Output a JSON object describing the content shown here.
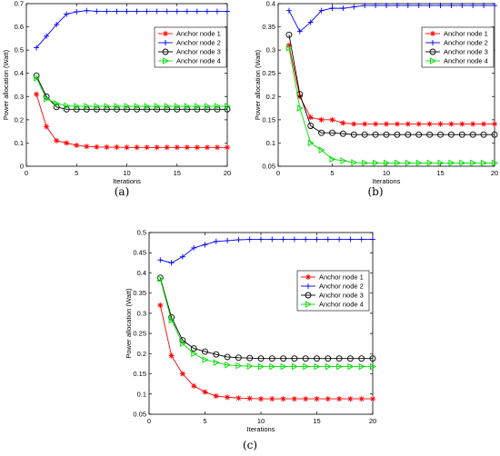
{
  "figure": {
    "captions": [
      "(a)",
      "(b)",
      "(c)"
    ]
  },
  "series_styles": [
    {
      "color": "#ff0000",
      "marker": "star"
    },
    {
      "color": "#0000ff",
      "marker": "plus"
    },
    {
      "color": "#000000",
      "marker": "circle"
    },
    {
      "color": "#00dd00",
      "marker": "triangle"
    }
  ],
  "chart_data": [
    {
      "type": "line",
      "panel": "(a)",
      "xlabel": "Iterations",
      "ylabel": "Power allocation (Watt)",
      "xlim": [
        0,
        20
      ],
      "ylim": [
        0,
        0.7
      ],
      "xticks": [
        0,
        5,
        10,
        15,
        20
      ],
      "yticks": [
        0,
        0.1,
        0.2,
        0.3,
        0.4,
        0.5,
        0.6,
        0.7
      ],
      "legend_position": "top-right",
      "x": [
        1,
        2,
        3,
        4,
        5,
        6,
        7,
        8,
        9,
        10,
        11,
        12,
        13,
        14,
        15,
        16,
        17,
        18,
        19,
        20
      ],
      "series": [
        {
          "name": "Anchor node 1",
          "values": [
            0.31,
            0.17,
            0.11,
            0.1,
            0.09,
            0.085,
            0.083,
            0.082,
            0.082,
            0.081,
            0.081,
            0.081,
            0.081,
            0.081,
            0.081,
            0.081,
            0.081,
            0.081,
            0.081,
            0.081
          ]
        },
        {
          "name": "Anchor node 2",
          "values": [
            0.51,
            0.56,
            0.61,
            0.655,
            0.665,
            0.67,
            0.667,
            0.667,
            0.667,
            0.667,
            0.667,
            0.667,
            0.667,
            0.667,
            0.667,
            0.667,
            0.667,
            0.667,
            0.667,
            0.667
          ]
        },
        {
          "name": "Anchor node 3",
          "values": [
            0.39,
            0.3,
            0.255,
            0.245,
            0.245,
            0.245,
            0.245,
            0.245,
            0.245,
            0.245,
            0.245,
            0.245,
            0.245,
            0.245,
            0.245,
            0.245,
            0.245,
            0.245,
            0.245,
            0.245
          ]
        },
        {
          "name": "Anchor node 4",
          "values": [
            0.38,
            0.29,
            0.27,
            0.26,
            0.258,
            0.258,
            0.258,
            0.258,
            0.258,
            0.258,
            0.258,
            0.258,
            0.258,
            0.258,
            0.258,
            0.258,
            0.258,
            0.258,
            0.258,
            0.258
          ]
        }
      ]
    },
    {
      "type": "line",
      "panel": "(b)",
      "xlabel": "Iterations",
      "ylabel": "Power allocation (Watt)",
      "xlim": [
        0,
        20
      ],
      "ylim": [
        0.05,
        0.4
      ],
      "xticks": [
        0,
        5,
        10,
        15,
        20
      ],
      "yticks": [
        0.05,
        0.1,
        0.15,
        0.2,
        0.25,
        0.3,
        0.35,
        0.4
      ],
      "legend_position": "top-right",
      "x": [
        1,
        2,
        3,
        4,
        5,
        6,
        7,
        8,
        9,
        10,
        11,
        12,
        13,
        14,
        15,
        16,
        17,
        18,
        19,
        20
      ],
      "series": [
        {
          "name": "Anchor node 1",
          "values": [
            0.31,
            0.2,
            0.155,
            0.15,
            0.15,
            0.143,
            0.141,
            0.141,
            0.141,
            0.141,
            0.141,
            0.141,
            0.141,
            0.141,
            0.141,
            0.141,
            0.141,
            0.141,
            0.141,
            0.141
          ]
        },
        {
          "name": "Anchor node 2",
          "values": [
            0.385,
            0.34,
            0.36,
            0.385,
            0.39,
            0.39,
            0.393,
            0.396,
            0.396,
            0.396,
            0.396,
            0.396,
            0.396,
            0.396,
            0.396,
            0.396,
            0.396,
            0.396,
            0.396,
            0.396
          ]
        },
        {
          "name": "Anchor node 3",
          "values": [
            0.333,
            0.205,
            0.137,
            0.122,
            0.122,
            0.12,
            0.118,
            0.118,
            0.118,
            0.118,
            0.118,
            0.118,
            0.118,
            0.118,
            0.118,
            0.118,
            0.118,
            0.118,
            0.118,
            0.118
          ]
        },
        {
          "name": "Anchor node 4",
          "values": [
            0.305,
            0.175,
            0.1,
            0.085,
            0.065,
            0.062,
            0.058,
            0.057,
            0.057,
            0.057,
            0.057,
            0.057,
            0.057,
            0.057,
            0.057,
            0.057,
            0.057,
            0.057,
            0.057,
            0.057
          ]
        }
      ]
    },
    {
      "type": "line",
      "panel": "(c)",
      "xlabel": "Iterations",
      "ylabel": "Power allocation (Watt)",
      "xlim": [
        0,
        20
      ],
      "ylim": [
        0.05,
        0.5
      ],
      "xticks": [
        0,
        5,
        10,
        15,
        20
      ],
      "yticks": [
        0.05,
        0.1,
        0.15,
        0.2,
        0.25,
        0.3,
        0.35,
        0.4,
        0.45,
        0.5
      ],
      "legend_position": "right",
      "x": [
        1,
        2,
        3,
        4,
        5,
        6,
        7,
        8,
        9,
        10,
        11,
        12,
        13,
        14,
        15,
        16,
        17,
        18,
        19,
        20
      ],
      "series": [
        {
          "name": "Anchor node 1",
          "values": [
            0.32,
            0.195,
            0.15,
            0.12,
            0.105,
            0.095,
            0.092,
            0.09,
            0.089,
            0.088,
            0.088,
            0.088,
            0.088,
            0.088,
            0.088,
            0.088,
            0.088,
            0.088,
            0.088,
            0.088
          ]
        },
        {
          "name": "Anchor node 2",
          "values": [
            0.432,
            0.425,
            0.44,
            0.462,
            0.47,
            0.478,
            0.48,
            0.482,
            0.483,
            0.483,
            0.483,
            0.483,
            0.483,
            0.483,
            0.483,
            0.483,
            0.483,
            0.483,
            0.483,
            0.483
          ]
        },
        {
          "name": "Anchor node 3",
          "values": [
            0.388,
            0.29,
            0.233,
            0.213,
            0.205,
            0.198,
            0.192,
            0.19,
            0.189,
            0.188,
            0.188,
            0.188,
            0.188,
            0.188,
            0.188,
            0.188,
            0.188,
            0.188,
            0.188,
            0.188
          ]
        },
        {
          "name": "Anchor node 4",
          "values": [
            0.385,
            0.283,
            0.225,
            0.2,
            0.185,
            0.178,
            0.172,
            0.17,
            0.169,
            0.168,
            0.168,
            0.168,
            0.168,
            0.168,
            0.168,
            0.168,
            0.168,
            0.168,
            0.168,
            0.168
          ]
        }
      ]
    }
  ]
}
